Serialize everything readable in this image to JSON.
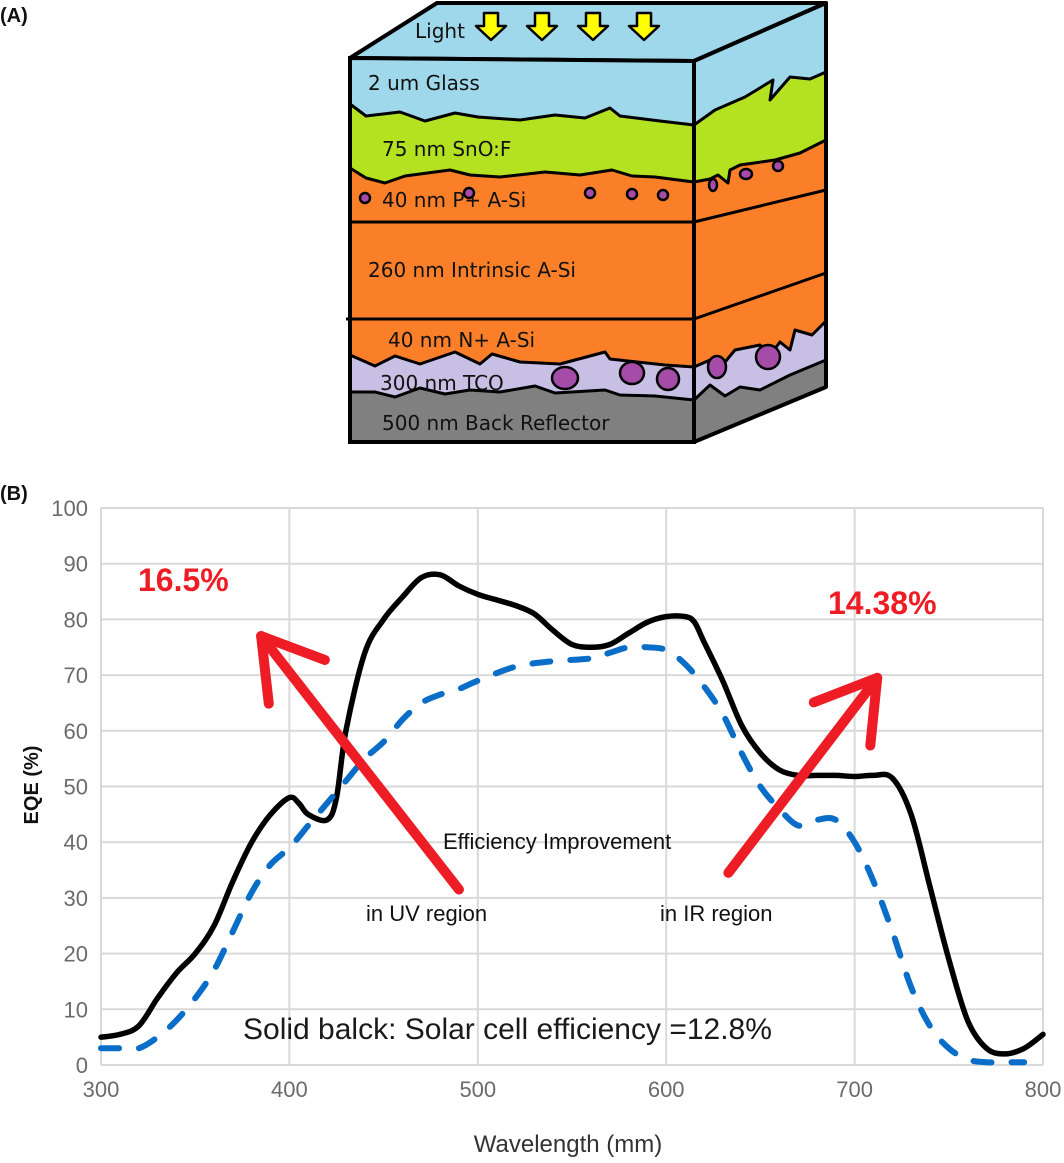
{
  "panels": {
    "a_label": "(A)",
    "b_label": "(B)"
  },
  "diagram": {
    "light_label": "Light",
    "light_arrow_count": 4,
    "layers": [
      {
        "label": "2 um  Glass",
        "color": "#9ed8ea"
      },
      {
        "label": "75 nm  SnO:F",
        "color": "#b4e221"
      },
      {
        "label": "40 nm  P+  A-Si",
        "color": "#fa7f28"
      },
      {
        "label": "260 nm   Intrinsic A-Si",
        "color": "#fa7f28"
      },
      {
        "label": "40 nm  N+  A-Si",
        "color": "#fa7f28"
      },
      {
        "label": "300 nm TCO",
        "color": "#c8bfe4"
      },
      {
        "label": "500 nm Back Reflector",
        "color": "#808080"
      }
    ],
    "particle_color": "#a44ca8",
    "arrow_color": "#ffff00"
  },
  "chart_data": {
    "type": "line",
    "title": "",
    "xlabel": "Wavelength (mm)",
    "ylabel": "EQE (%)",
    "xlim": [
      300,
      800
    ],
    "ylim": [
      0,
      100
    ],
    "xticks": [
      300,
      400,
      500,
      600,
      700,
      800
    ],
    "yticks": [
      0,
      10,
      20,
      30,
      40,
      50,
      60,
      70,
      80,
      90,
      100
    ],
    "grid": true,
    "series": [
      {
        "name": "Solid black (improved cell)",
        "style": "solid",
        "color": "#000000",
        "x": [
          300,
          310,
          320,
          330,
          340,
          350,
          360,
          370,
          380,
          390,
          400,
          405,
          410,
          420,
          425,
          430,
          440,
          450,
          460,
          470,
          480,
          490,
          500,
          510,
          520,
          530,
          540,
          550,
          560,
          570,
          580,
          590,
          600,
          610,
          615,
          620,
          630,
          640,
          650,
          660,
          670,
          680,
          690,
          700,
          710,
          720,
          730,
          740,
          750,
          760,
          770,
          780,
          790,
          800
        ],
        "y": [
          5,
          5.5,
          7,
          12,
          16.5,
          20,
          25,
          33,
          40,
          45,
          48,
          47,
          45,
          44,
          48,
          60,
          74,
          80,
          84,
          87.5,
          88,
          86,
          84.5,
          83.5,
          82.5,
          81,
          78,
          75.5,
          75,
          75.5,
          77.5,
          79.5,
          80.5,
          80.5,
          79.5,
          76,
          69,
          61,
          56,
          53,
          52,
          52,
          52,
          51.8,
          52,
          51.5,
          45,
          32,
          19,
          8,
          3,
          2,
          3,
          5.5
        ]
      },
      {
        "name": "Dashed blue (reference cell)",
        "style": "dashed",
        "color": "#0a6ec8",
        "x": [
          300,
          310,
          320,
          330,
          340,
          350,
          360,
          370,
          380,
          390,
          400,
          410,
          420,
          430,
          440,
          450,
          460,
          470,
          480,
          490,
          500,
          520,
          540,
          560,
          570,
          580,
          590,
          600,
          610,
          620,
          630,
          640,
          650,
          660,
          670,
          680,
          690,
          700,
          710,
          720,
          730,
          740,
          750,
          760,
          770,
          780,
          790
        ],
        "y": [
          3,
          3,
          3,
          5,
          8,
          12,
          17,
          24,
          31,
          36,
          39,
          43,
          47,
          51,
          55,
          58,
          62,
          65,
          66.5,
          67.5,
          69,
          71.5,
          72.5,
          73,
          74,
          75,
          75,
          74.5,
          72,
          68,
          63,
          56,
          50,
          46,
          43,
          44,
          44,
          40,
          33,
          24,
          14,
          7,
          3,
          1,
          0.5,
          0.5,
          0.5
        ]
      }
    ],
    "annotations": [
      {
        "text": "16.5%",
        "color": "#ee1c24",
        "x": 360,
        "y": 86
      },
      {
        "text": "14.38%",
        "color": "#ee1c24",
        "x": 735,
        "y": 82
      },
      {
        "text": "Efficiency Improvement",
        "color": "#111111",
        "x": 587,
        "y": 40
      },
      {
        "text": "in UV region",
        "color": "#111111",
        "x": 440,
        "y": 27
      },
      {
        "text": "in IR region",
        "color": "#111111",
        "x": 687,
        "y": 27
      },
      {
        "text": "Solid balck: Solar cell efficiency =12.8%",
        "color": "#1a1a1a",
        "x": 575,
        "y": 6.5
      }
    ],
    "arrows": [
      {
        "name": "uv-arrow",
        "from": [
          490,
          31.5
        ],
        "to": [
          385,
          77
        ],
        "color": "#ee1c24"
      },
      {
        "name": "ir-arrow",
        "from": [
          633,
          34.5
        ],
        "to": [
          712,
          69.5
        ],
        "color": "#ee1c24"
      }
    ]
  }
}
